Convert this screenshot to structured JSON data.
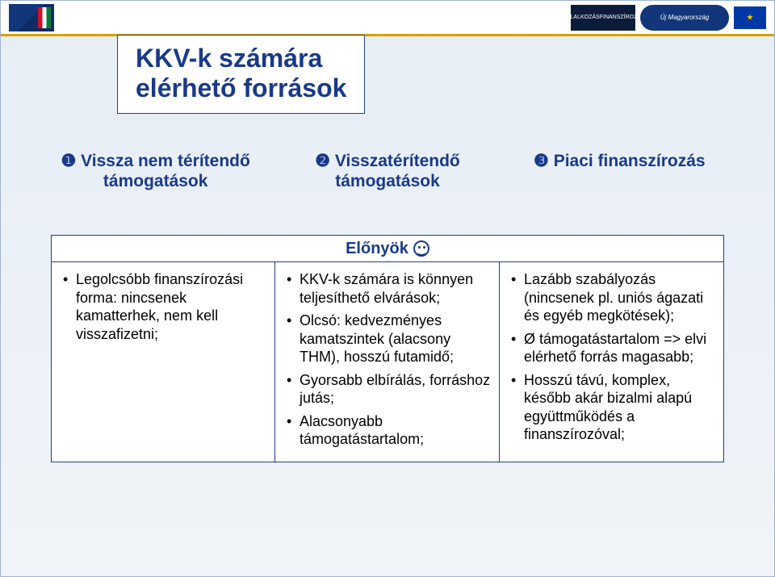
{
  "title": {
    "line1": "KKV-k számára",
    "line2": "elérhető források"
  },
  "columns": {
    "col1": "❶ Vissza nem térítendő támogatások",
    "col2": "❷ Visszatérítendő támogatások",
    "col3": "❸ Piaci finanszírozás"
  },
  "advantages": {
    "title": "Előnyök",
    "col1": [
      "Legolcsóbb finanszírozási forma: nincsenek kamatterhek, nem kell visszafizetni;"
    ],
    "col2": [
      "KKV-k számára is könnyen teljesíthető elvárások;",
      "Olcsó: kedvezményes kamatszintek (alacsony THM), hosszú futamidő;",
      "Gyorsabb elbírálás, forráshoz jutás;",
      "Alacsonyabb támogatástartalom;"
    ],
    "col3": [
      "Lazább szabályozás (nincsenek pl. uniós ágazati és egyéb megkötések);",
      "Ø támogatástartalom => elvi elérhető forrás magasabb;",
      "Hosszú távú, komplex, később akár bizalmi alapú együttműködés a finanszírozóval;"
    ]
  },
  "logos": {
    "right_text1": "VÁLLALKOZÁSFINANSZÍROZÁSI",
    "right_text2": "Új Magyarország"
  }
}
